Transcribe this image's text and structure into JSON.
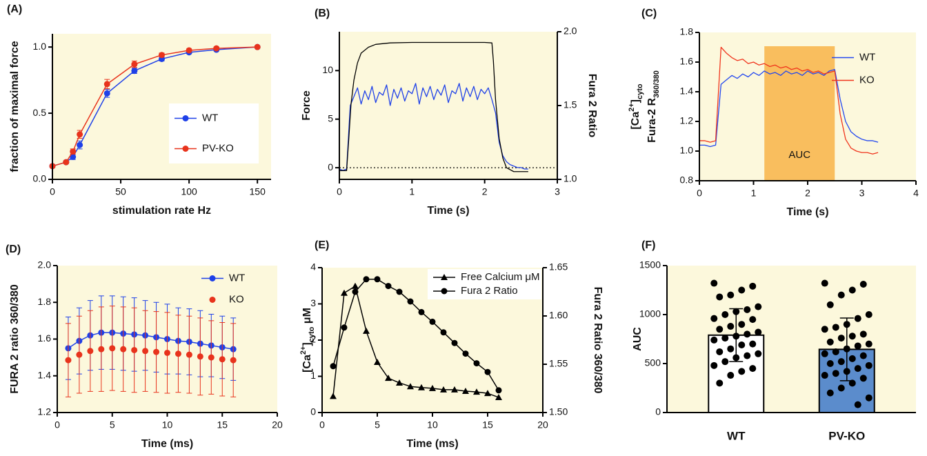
{
  "chart_data": [
    {
      "type": "line",
      "panel": "(A)",
      "x_label": "stimulation rate Hz",
      "y_label": "fraction of maximal force",
      "background": "#fcf8dc",
      "x": [
        0,
        10,
        15,
        20,
        40,
        60,
        80,
        100,
        120,
        150
      ],
      "series": [
        {
          "name": "WT",
          "color": "#1e40e8",
          "marker": "circle",
          "values": [
            0.1,
            0.13,
            0.17,
            0.26,
            0.65,
            0.82,
            0.91,
            0.96,
            0.98,
            1.0
          ],
          "errors": [
            0.01,
            0.01,
            0.02,
            0.03,
            0.03,
            0.02,
            0.015,
            0.01,
            0.01,
            0.005
          ]
        },
        {
          "name": "PV-KO",
          "color": "#e8331c",
          "marker": "circle",
          "values": [
            0.1,
            0.13,
            0.21,
            0.34,
            0.72,
            0.87,
            0.94,
            0.975,
            0.99,
            1.0
          ],
          "errors": [
            0.01,
            0.01,
            0.02,
            0.03,
            0.035,
            0.025,
            0.015,
            0.01,
            0.01,
            0.005
          ]
        }
      ],
      "xlim": [
        0,
        160
      ],
      "xticks": [
        0,
        50,
        100,
        150
      ],
      "ylim": [
        0,
        1.1
      ],
      "yticks": [
        {
          "value": 0,
          "label": "0.0"
        },
        0.5,
        {
          "value": 1,
          "label": "1.0"
        }
      ],
      "legend": "lower right",
      "legend_box": true
    },
    {
      "type": "line",
      "panel": "(B)",
      "x_label": "Time (s)",
      "y_label": "Force",
      "y2_label": "Fura 2 Ratio",
      "background": "#fcf8dc",
      "hline": 0,
      "series": [
        {
          "color": "#1e40e8",
          "axis": "y2",
          "x": [
            0,
            0.05,
            0.1,
            0.15,
            0.2,
            0.25,
            0.3,
            0.35,
            0.4,
            0.45,
            0.5,
            0.55,
            0.6,
            0.65,
            0.7,
            0.75,
            0.8,
            0.85,
            0.9,
            0.95,
            1.0,
            1.05,
            1.1,
            1.15,
            1.2,
            1.25,
            1.3,
            1.35,
            1.4,
            1.45,
            1.5,
            1.55,
            1.6,
            1.65,
            1.7,
            1.75,
            1.8,
            1.85,
            1.9,
            1.95,
            2.0,
            2.05,
            2.1,
            2.15,
            2.2,
            2.25,
            2.3,
            2.35,
            2.4,
            2.45,
            2.5,
            2.55,
            2.6
          ],
          "values": [
            1.07,
            1.06,
            1.07,
            1.5,
            1.56,
            1.62,
            1.51,
            1.6,
            1.54,
            1.63,
            1.52,
            1.59,
            1.57,
            1.64,
            1.5,
            1.61,
            1.55,
            1.62,
            1.53,
            1.6,
            1.58,
            1.65,
            1.51,
            1.62,
            1.56,
            1.63,
            1.54,
            1.61,
            1.57,
            1.64,
            1.52,
            1.6,
            1.58,
            1.65,
            1.53,
            1.62,
            1.56,
            1.63,
            1.54,
            1.61,
            1.58,
            1.62,
            1.54,
            1.45,
            1.25,
            1.16,
            1.12,
            1.1,
            1.09,
            1.08,
            1.08,
            1.07,
            1.07
          ]
        },
        {
          "color": "#000000",
          "x": [
            0,
            0.1,
            0.13,
            0.16,
            0.2,
            0.25,
            0.3,
            0.4,
            0.5,
            0.7,
            1,
            1.5,
            2,
            2.1,
            2.12,
            2.15,
            2.2,
            2.25,
            2.3,
            2.4,
            2.6
          ],
          "values": [
            -0.3,
            -0.3,
            3,
            6.5,
            9,
            10.8,
            11.8,
            12.4,
            12.7,
            12.85,
            12.9,
            12.9,
            12.9,
            12.85,
            11,
            7,
            3,
            1,
            0,
            -0.4,
            -0.4
          ]
        }
      ],
      "xlim": [
        0,
        3
      ],
      "xticks": [
        0,
        1,
        2,
        3
      ],
      "ylim": [
        -1.2,
        14
      ],
      "yticks": [
        0,
        5,
        10
      ],
      "y2lim": [
        1,
        2
      ],
      "y2ticks": [
        {
          "value": 1,
          "label": "1.0"
        },
        1.5,
        {
          "value": 2,
          "label": "2.0"
        }
      ]
    },
    {
      "type": "line",
      "panel": "(C)",
      "x_label": "Time (s)",
      "background": "#fcf8dc",
      "y_label": [
        [
          "[Ca",
          "2+",
          "]",
          "cyto"
        ],
        [
          "Fura-2 R",
          "360/380"
        ]
      ],
      "y_label_shift": [
        [
          "base",
          "super",
          "base",
          "sub"
        ],
        [
          "base",
          "sub"
        ]
      ],
      "shade": {
        "x": [
          1.2,
          2.5
        ],
        "label": "AUC",
        "color": "#f8b448"
      },
      "x": [
        0,
        0.1,
        0.2,
        0.3,
        0.4,
        0.5,
        0.6,
        0.7,
        0.8,
        0.9,
        1.0,
        1.1,
        1.2,
        1.3,
        1.4,
        1.5,
        1.6,
        1.7,
        1.8,
        1.9,
        2.0,
        2.1,
        2.2,
        2.3,
        2.4,
        2.5,
        2.6,
        2.7,
        2.8,
        2.9,
        3.0,
        3.1,
        3.2,
        3.3
      ],
      "series": [
        {
          "name": "WT",
          "color": "#2247f0",
          "values": [
            1.04,
            1.04,
            1.03,
            1.04,
            1.45,
            1.48,
            1.51,
            1.49,
            1.52,
            1.5,
            1.53,
            1.51,
            1.54,
            1.52,
            1.53,
            1.51,
            1.54,
            1.52,
            1.53,
            1.51,
            1.54,
            1.52,
            1.53,
            1.51,
            1.54,
            1.55,
            1.35,
            1.2,
            1.13,
            1.1,
            1.08,
            1.07,
            1.07,
            1.06
          ]
        },
        {
          "name": "KO",
          "color": "#f0341c",
          "values": [
            1.07,
            1.07,
            1.06,
            1.07,
            1.7,
            1.66,
            1.63,
            1.61,
            1.62,
            1.59,
            1.6,
            1.58,
            1.59,
            1.57,
            1.58,
            1.56,
            1.57,
            1.55,
            1.56,
            1.54,
            1.55,
            1.53,
            1.54,
            1.52,
            1.53,
            1.54,
            1.25,
            1.08,
            1.02,
            1.0,
            0.99,
            0.99,
            0.98,
            0.99
          ]
        }
      ],
      "xlim": [
        0,
        4
      ],
      "xticks": [
        0,
        1,
        2,
        3,
        4
      ],
      "ylim": [
        0.8,
        1.8
      ],
      "yticks": [
        0.8,
        {
          "value": 1,
          "label": "1.0"
        },
        1.2,
        1.4,
        1.6,
        1.8
      ],
      "legend": "upper right",
      "legend_box": false
    },
    {
      "type": "line",
      "panel": "(D)",
      "x_label": "Time (ms)",
      "y_label": "FURA 2 ratio 360/380",
      "background": "#fcf8dc",
      "x": [
        1,
        2,
        3,
        4,
        5,
        6,
        7,
        8,
        9,
        10,
        11,
        12,
        13,
        14,
        15,
        16
      ],
      "series": [
        {
          "name": "WT",
          "color": "#1e40e8",
          "marker": "circle",
          "values": [
            1.55,
            1.59,
            1.62,
            1.635,
            1.635,
            1.63,
            1.625,
            1.62,
            1.61,
            1.6,
            1.59,
            1.585,
            1.575,
            1.565,
            1.555,
            1.545
          ],
          "errors": [
            0.17,
            0.18,
            0.19,
            0.2,
            0.2,
            0.2,
            0.2,
            0.19,
            0.19,
            0.19,
            0.18,
            0.18,
            0.18,
            0.17,
            0.17,
            0.17
          ]
        },
        {
          "name": "KO",
          "color": "#e8331c",
          "marker": "circle",
          "line": false,
          "values": [
            1.485,
            1.515,
            1.535,
            1.545,
            1.55,
            1.545,
            1.54,
            1.535,
            1.53,
            1.525,
            1.52,
            1.515,
            1.505,
            1.5,
            1.49,
            1.485
          ],
          "errors": [
            0.2,
            0.21,
            0.22,
            0.23,
            0.23,
            0.23,
            0.23,
            0.22,
            0.22,
            0.22,
            0.21,
            0.21,
            0.21,
            0.2,
            0.2,
            0.2
          ]
        }
      ],
      "xlim": [
        0,
        20
      ],
      "xticks": [
        0,
        5,
        10,
        15,
        20
      ],
      "ylim": [
        1.2,
        2.0
      ],
      "yticks": [
        1.2,
        1.4,
        1.6,
        1.8,
        {
          "value": 2,
          "label": "2.0"
        }
      ],
      "legend": "upper right",
      "legend_box": false
    },
    {
      "type": "line",
      "panel": "(E)",
      "x_label": "Time (ms)",
      "background": "#fcf8dc",
      "y_label": [
        [
          "[Ca",
          "2+",
          "]",
          "cyto",
          "  μM"
        ]
      ],
      "y_label_shift": [
        [
          "base",
          "super",
          "base",
          "sub",
          "base"
        ]
      ],
      "y2_label": "Fura 2 Ratio 360/380",
      "x": [
        1,
        2,
        3,
        4,
        5,
        6,
        7,
        8,
        9,
        10,
        11,
        12,
        13,
        14,
        15,
        16
      ],
      "series": [
        {
          "name": "Free Calcium μM",
          "color": "#000000",
          "marker": "triangle",
          "values": [
            0.45,
            3.3,
            3.49,
            2.25,
            1.39,
            0.95,
            0.82,
            0.72,
            0.69,
            0.67,
            0.63,
            0.63,
            0.59,
            0.57,
            0.53,
            0.42
          ]
        },
        {
          "name": "Fura 2 Ratio",
          "color": "#000000",
          "marker": "circle",
          "axis": "y2",
          "values": [
            1.548,
            1.588,
            1.625,
            1.638,
            1.638,
            1.631,
            1.625,
            1.615,
            1.604,
            1.594,
            1.583,
            1.572,
            1.561,
            1.551,
            1.542,
            1.523
          ]
        }
      ],
      "xlim": [
        0,
        20
      ],
      "xticks": [
        0,
        5,
        10,
        15,
        20
      ],
      "ylim": [
        0,
        4
      ],
      "yticks": [
        0,
        1,
        2,
        3,
        4
      ],
      "y2lim": [
        1.5,
        1.65
      ],
      "y2ticks": [
        {
          "value": 1.5,
          "label": "1.50"
        },
        1.55,
        {
          "value": 1.6,
          "label": "1.60"
        },
        1.65
      ],
      "legend": "upper right",
      "legend_box": true
    },
    {
      "type": "bar",
      "panel": "(F)",
      "y_label": "AUC",
      "background": "#fcf8dc",
      "categories": [
        "WT",
        "PV-KO"
      ],
      "values": [
        790,
        645
      ],
      "errors": [
        270,
        320
      ],
      "colors": [
        "#ffffff",
        "#5b8ccc"
      ],
      "points": [
        [
          1320,
          1290,
          1250,
          1200,
          1180,
          1080,
          1050,
          1030,
          1000,
          960,
          950,
          900,
          880,
          850,
          820,
          800,
          780,
          760,
          740,
          700,
          690,
          650,
          620,
          600,
          580,
          560,
          520,
          480,
          450,
          420,
          380,
          300
        ],
        [
          1320,
          1310,
          1250,
          1200,
          1100,
          1000,
          960,
          900,
          870,
          850,
          800,
          780,
          760,
          720,
          700,
          680,
          650,
          620,
          600,
          580,
          550,
          520,
          500,
          480,
          450,
          420,
          400,
          380,
          350,
          300,
          250,
          200,
          150,
          80
        ]
      ],
      "ylim": [
        0,
        1500
      ],
      "yticks": [
        0,
        500,
        1000,
        1500
      ]
    }
  ]
}
